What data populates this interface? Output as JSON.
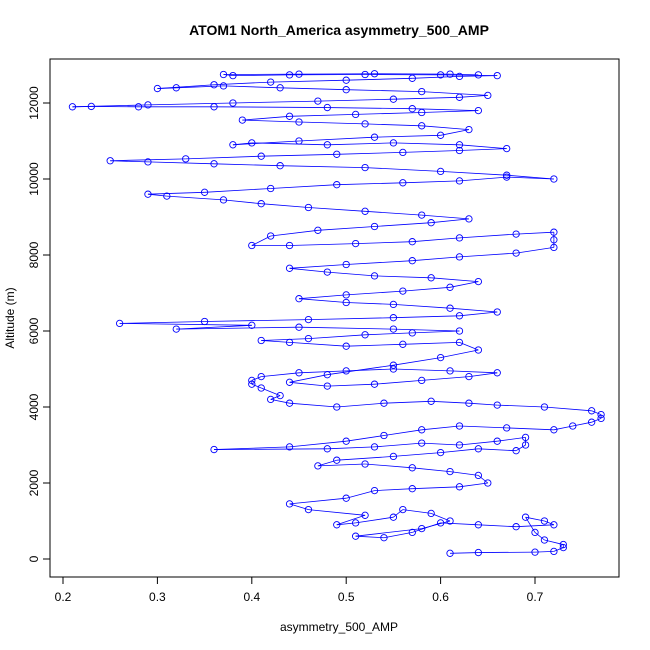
{
  "chart_data": {
    "type": "scatter",
    "title": "ATOM1 North_America asymmetry_500_AMP",
    "xlabel": "asymmetry_500_AMP",
    "ylabel": "Altitude (m)",
    "xlim": [
      0.2,
      0.785
    ],
    "ylim": [
      0,
      13000
    ],
    "xticks": [
      "0.2",
      "0.3",
      "0.4",
      "0.5",
      "0.6",
      "0.7"
    ],
    "yticks": [
      "0",
      "2000",
      "4000",
      "6000",
      "8000",
      "10000",
      "12000"
    ],
    "grid": false,
    "legend": "none",
    "series": [
      {
        "color": "#0000ff",
        "marker": "open-circle",
        "connected": true,
        "points": [
          [
            0.61,
            150
          ],
          [
            0.64,
            170
          ],
          [
            0.7,
            180
          ],
          [
            0.72,
            200
          ],
          [
            0.73,
            300
          ],
          [
            0.73,
            380
          ],
          [
            0.71,
            500
          ],
          [
            0.7,
            700
          ],
          [
            0.69,
            1100
          ],
          [
            0.71,
            1000
          ],
          [
            0.72,
            900
          ],
          [
            0.68,
            850
          ],
          [
            0.64,
            900
          ],
          [
            0.6,
            950
          ],
          [
            0.57,
            700
          ],
          [
            0.54,
            560
          ],
          [
            0.51,
            600
          ],
          [
            0.58,
            800
          ],
          [
            0.61,
            1000
          ],
          [
            0.59,
            1200
          ],
          [
            0.56,
            1300
          ],
          [
            0.55,
            1100
          ],
          [
            0.51,
            950
          ],
          [
            0.49,
            900
          ],
          [
            0.52,
            1150
          ],
          [
            0.46,
            1300
          ],
          [
            0.44,
            1450
          ],
          [
            0.5,
            1600
          ],
          [
            0.53,
            1800
          ],
          [
            0.57,
            1850
          ],
          [
            0.62,
            1900
          ],
          [
            0.65,
            2000
          ],
          [
            0.64,
            2200
          ],
          [
            0.61,
            2300
          ],
          [
            0.57,
            2400
          ],
          [
            0.52,
            2500
          ],
          [
            0.47,
            2450
          ],
          [
            0.49,
            2600
          ],
          [
            0.55,
            2700
          ],
          [
            0.6,
            2800
          ],
          [
            0.64,
            2900
          ],
          [
            0.68,
            2850
          ],
          [
            0.69,
            3000
          ],
          [
            0.69,
            3200
          ],
          [
            0.66,
            3100
          ],
          [
            0.62,
            3000
          ],
          [
            0.58,
            3050
          ],
          [
            0.53,
            2950
          ],
          [
            0.48,
            2900
          ],
          [
            0.36,
            2880
          ],
          [
            0.44,
            2950
          ],
          [
            0.5,
            3100
          ],
          [
            0.54,
            3250
          ],
          [
            0.58,
            3400
          ],
          [
            0.62,
            3500
          ],
          [
            0.67,
            3450
          ],
          [
            0.72,
            3400
          ],
          [
            0.74,
            3500
          ],
          [
            0.76,
            3600
          ],
          [
            0.77,
            3700
          ],
          [
            0.77,
            3800
          ],
          [
            0.76,
            3900
          ],
          [
            0.71,
            4000
          ],
          [
            0.66,
            4050
          ],
          [
            0.63,
            4100
          ],
          [
            0.59,
            4150
          ],
          [
            0.54,
            4100
          ],
          [
            0.49,
            4000
          ],
          [
            0.44,
            4100
          ],
          [
            0.42,
            4200
          ],
          [
            0.43,
            4300
          ],
          [
            0.41,
            4500
          ],
          [
            0.4,
            4600
          ],
          [
            0.4,
            4700
          ],
          [
            0.41,
            4800
          ],
          [
            0.45,
            4900
          ],
          [
            0.5,
            4950
          ],
          [
            0.55,
            5000
          ],
          [
            0.61,
            4950
          ],
          [
            0.66,
            4900
          ],
          [
            0.63,
            4800
          ],
          [
            0.58,
            4700
          ],
          [
            0.53,
            4600
          ],
          [
            0.48,
            4550
          ],
          [
            0.44,
            4650
          ],
          [
            0.48,
            4850
          ],
          [
            0.55,
            5100
          ],
          [
            0.6,
            5300
          ],
          [
            0.64,
            5500
          ],
          [
            0.62,
            5700
          ],
          [
            0.56,
            5650
          ],
          [
            0.5,
            5600
          ],
          [
            0.44,
            5700
          ],
          [
            0.41,
            5750
          ],
          [
            0.46,
            5800
          ],
          [
            0.52,
            5900
          ],
          [
            0.57,
            5950
          ],
          [
            0.62,
            6000
          ],
          [
            0.55,
            6050
          ],
          [
            0.45,
            6100
          ],
          [
            0.32,
            6050
          ],
          [
            0.4,
            6150
          ],
          [
            0.26,
            6200
          ],
          [
            0.35,
            6250
          ],
          [
            0.46,
            6300
          ],
          [
            0.55,
            6350
          ],
          [
            0.62,
            6400
          ],
          [
            0.66,
            6500
          ],
          [
            0.61,
            6600
          ],
          [
            0.55,
            6700
          ],
          [
            0.5,
            6750
          ],
          [
            0.45,
            6850
          ],
          [
            0.5,
            6950
          ],
          [
            0.56,
            7050
          ],
          [
            0.61,
            7150
          ],
          [
            0.64,
            7300
          ],
          [
            0.59,
            7400
          ],
          [
            0.53,
            7450
          ],
          [
            0.48,
            7550
          ],
          [
            0.44,
            7650
          ],
          [
            0.5,
            7750
          ],
          [
            0.57,
            7850
          ],
          [
            0.62,
            7950
          ],
          [
            0.68,
            8050
          ],
          [
            0.72,
            8200
          ],
          [
            0.72,
            8400
          ],
          [
            0.72,
            8600
          ],
          [
            0.68,
            8550
          ],
          [
            0.62,
            8450
          ],
          [
            0.57,
            8350
          ],
          [
            0.51,
            8300
          ],
          [
            0.44,
            8250
          ],
          [
            0.4,
            8250
          ],
          [
            0.42,
            8500
          ],
          [
            0.47,
            8650
          ],
          [
            0.53,
            8750
          ],
          [
            0.59,
            8850
          ],
          [
            0.63,
            8950
          ],
          [
            0.58,
            9050
          ],
          [
            0.52,
            9150
          ],
          [
            0.46,
            9250
          ],
          [
            0.41,
            9350
          ],
          [
            0.37,
            9450
          ],
          [
            0.31,
            9550
          ],
          [
            0.29,
            9600
          ],
          [
            0.35,
            9650
          ],
          [
            0.42,
            9750
          ],
          [
            0.49,
            9850
          ],
          [
            0.56,
            9900
          ],
          [
            0.62,
            9950
          ],
          [
            0.67,
            10050
          ],
          [
            0.72,
            10000
          ],
          [
            0.67,
            10100
          ],
          [
            0.6,
            10200
          ],
          [
            0.52,
            10300
          ],
          [
            0.43,
            10350
          ],
          [
            0.36,
            10400
          ],
          [
            0.29,
            10450
          ],
          [
            0.25,
            10480
          ],
          [
            0.33,
            10530
          ],
          [
            0.41,
            10600
          ],
          [
            0.49,
            10650
          ],
          [
            0.56,
            10700
          ],
          [
            0.62,
            10750
          ],
          [
            0.67,
            10800
          ],
          [
            0.62,
            10900
          ],
          [
            0.55,
            10950
          ],
          [
            0.48,
            10900
          ],
          [
            0.4,
            10950
          ],
          [
            0.38,
            10900
          ],
          [
            0.45,
            11000
          ],
          [
            0.53,
            11100
          ],
          [
            0.6,
            11150
          ],
          [
            0.63,
            11300
          ],
          [
            0.58,
            11400
          ],
          [
            0.52,
            11450
          ],
          [
            0.45,
            11500
          ],
          [
            0.39,
            11550
          ],
          [
            0.44,
            11650
          ],
          [
            0.51,
            11700
          ],
          [
            0.58,
            11750
          ],
          [
            0.64,
            11800
          ],
          [
            0.57,
            11850
          ],
          [
            0.48,
            11880
          ],
          [
            0.36,
            11900
          ],
          [
            0.28,
            11900
          ],
          [
            0.23,
            11910
          ],
          [
            0.21,
            11900
          ],
          [
            0.29,
            11950
          ],
          [
            0.38,
            12000
          ],
          [
            0.47,
            12050
          ],
          [
            0.55,
            12100
          ],
          [
            0.62,
            12150
          ],
          [
            0.65,
            12200
          ],
          [
            0.58,
            12300
          ],
          [
            0.5,
            12350
          ],
          [
            0.43,
            12400
          ],
          [
            0.37,
            12450
          ],
          [
            0.32,
            12400
          ],
          [
            0.3,
            12380
          ],
          [
            0.36,
            12480
          ],
          [
            0.42,
            12550
          ],
          [
            0.5,
            12600
          ],
          [
            0.57,
            12650
          ],
          [
            0.62,
            12700
          ],
          [
            0.66,
            12720
          ],
          [
            0.6,
            12740
          ],
          [
            0.52,
            12750
          ],
          [
            0.44,
            12740
          ],
          [
            0.38,
            12720
          ],
          [
            0.37,
            12750
          ],
          [
            0.45,
            12760
          ],
          [
            0.53,
            12770
          ],
          [
            0.61,
            12760
          ],
          [
            0.64,
            12740
          ]
        ]
      }
    ]
  }
}
